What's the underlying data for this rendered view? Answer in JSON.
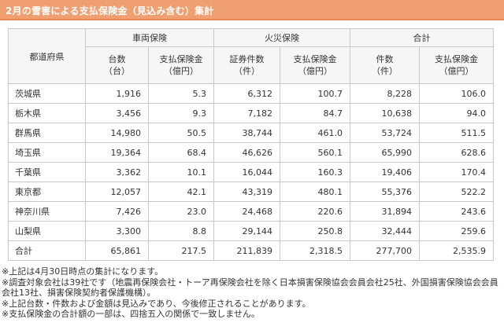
{
  "title": "2月の雪害による支払保険金（見込み含む）集計",
  "table": {
    "pref_header": "都道府県",
    "groups": [
      "車両保険",
      "火災保険",
      "合計"
    ],
    "subheaders": [
      [
        "台数",
        "（台）"
      ],
      [
        "支払保険金",
        "（億円）"
      ],
      [
        "証券件数",
        "（件）"
      ],
      [
        "支払保険金",
        "（億円）"
      ],
      [
        "件数",
        "（件）"
      ],
      [
        "支払保険金",
        "（億円）"
      ]
    ],
    "rows": [
      [
        "茨城県",
        "1,916",
        "5.3",
        "6,312",
        "100.7",
        "8,228",
        "106.0"
      ],
      [
        "栃木県",
        "3,456",
        "9.3",
        "7,182",
        "84.7",
        "10,638",
        "94.0"
      ],
      [
        "群馬県",
        "14,980",
        "50.5",
        "38,744",
        "461.0",
        "53,724",
        "511.5"
      ],
      [
        "埼玉県",
        "19,364",
        "68.4",
        "46,626",
        "560.1",
        "65,990",
        "628.6"
      ],
      [
        "千葉県",
        "3,362",
        "10.1",
        "16,044",
        "160.3",
        "19,406",
        "170.4"
      ],
      [
        "東京都",
        "12,057",
        "42.1",
        "43,319",
        "480.1",
        "55,376",
        "522.2"
      ],
      [
        "神奈川県",
        "7,426",
        "23.0",
        "24,468",
        "220.6",
        "31,894",
        "243.6"
      ],
      [
        "山梨県",
        "3,300",
        "8.8",
        "29,144",
        "250.8",
        "32,444",
        "259.6"
      ],
      [
        "合計",
        "65,861",
        "217.5",
        "211,839",
        "2,318.5",
        "277,700",
        "2,535.9"
      ]
    ]
  },
  "notes": [
    "※上記は4月30日時点の集計になります。",
    "※調査対象会社は39社です（地震再保険会社・トーア再保険会社を除く日本損害保険協会会員会社25社、外国損害保険協会会員会社13社、損害保険契約者保護機構）。",
    "※上記台数・件数および金額は見込みであり、今後修正されることがあります。",
    "※支払保険金の合計額の一部は、四捨五入の関係で一致しません。"
  ]
}
